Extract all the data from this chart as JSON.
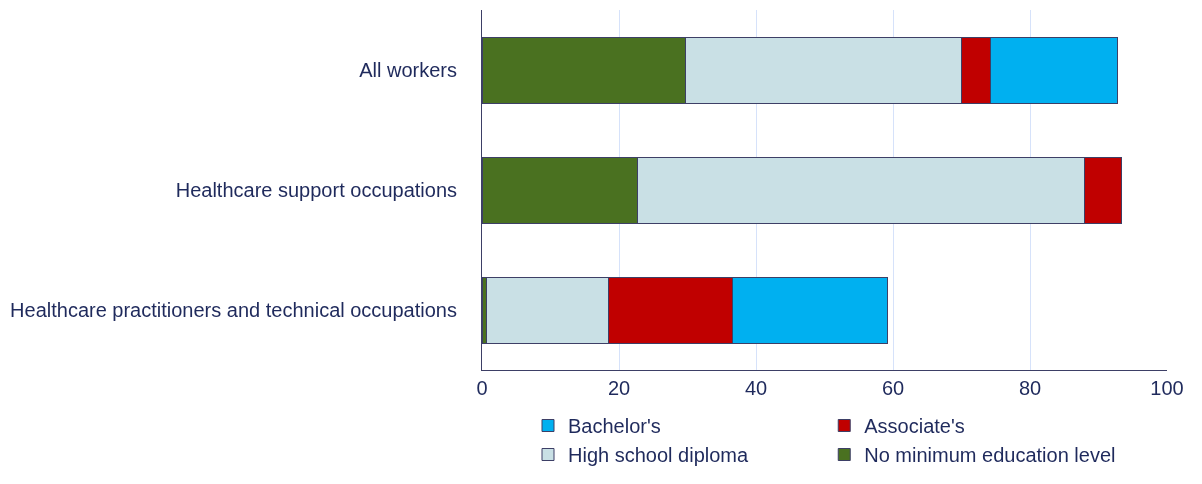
{
  "chart_data": {
    "type": "bar",
    "orientation": "horizontal",
    "stacked": true,
    "categories": [
      "All workers",
      "Healthcare support occupations",
      "Healthcare practitioners and technical occupations"
    ],
    "series": [
      {
        "name": "No minimum education level",
        "color": "#4a7120",
        "values": [
          29.7,
          22.7,
          0.6
        ]
      },
      {
        "name": "High school diploma",
        "color": "#c9e0e5",
        "values": [
          40.3,
          65.2,
          17.9
        ]
      },
      {
        "name": "Associate's",
        "color": "#c00000",
        "values": [
          4.3,
          5.5,
          18.0
        ]
      },
      {
        "name": "Bachelor's",
        "color": "#00b0f0",
        "values": [
          18.5,
          null,
          22.7
        ]
      }
    ],
    "xlim": [
      0,
      100
    ],
    "xticks": [
      0,
      20,
      40,
      60,
      80,
      100
    ],
    "grid": "x",
    "legend": "bottom"
  }
}
